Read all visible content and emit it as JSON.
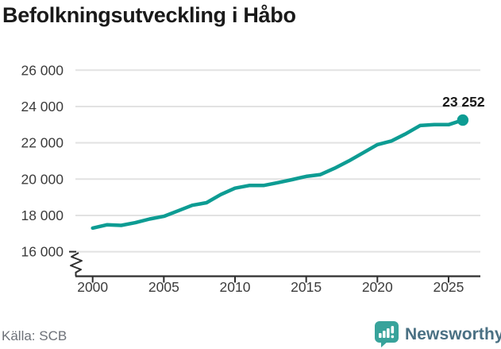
{
  "title": "Befolkningsutveckling i Håbo",
  "footer": {
    "source_label": "Källa: SCB",
    "brand": "Newsworthy"
  },
  "colors": {
    "line": "#0d9c93",
    "brand_text": "#4a7083",
    "brand_icon": "#38a39b",
    "title_text": "#1a1a1a"
  },
  "chart_data": {
    "type": "line",
    "title": "Befolkningsutveckling i Håbo",
    "xlabel": "",
    "ylabel": "",
    "grid": "horizontal",
    "legend": "none",
    "axis_break": true,
    "xlim": [
      2000,
      2026
    ],
    "ylim": [
      16000,
      26000
    ],
    "x_ticks": [
      2000,
      2005,
      2010,
      2015,
      2020,
      2025
    ],
    "x_tick_labels": [
      "2000",
      "2005",
      "2010",
      "2015",
      "2020",
      "2025"
    ],
    "y_ticks": [
      16000,
      18000,
      20000,
      22000,
      24000,
      26000
    ],
    "y_tick_labels": [
      "16 000",
      "18 000",
      "20 000",
      "22 000",
      "24 000",
      "26 000"
    ],
    "end_label": "23 252",
    "end_value": 23252,
    "source": "SCB",
    "series": [
      {
        "name": "population",
        "color": "#0d9c93",
        "x": [
          2000,
          2001,
          2002,
          2003,
          2004,
          2005,
          2006,
          2007,
          2008,
          2009,
          2010,
          2011,
          2012,
          2013,
          2014,
          2015,
          2016,
          2017,
          2018,
          2019,
          2020,
          2021,
          2022,
          2023,
          2024,
          2025,
          2026
        ],
        "values": [
          17300,
          17480,
          17450,
          17600,
          17800,
          17950,
          18250,
          18560,
          18700,
          19150,
          19500,
          19650,
          19650,
          19800,
          19970,
          20150,
          20250,
          20600,
          21000,
          21450,
          21900,
          22100,
          22500,
          22950,
          23000,
          23000,
          23252
        ]
      }
    ]
  }
}
